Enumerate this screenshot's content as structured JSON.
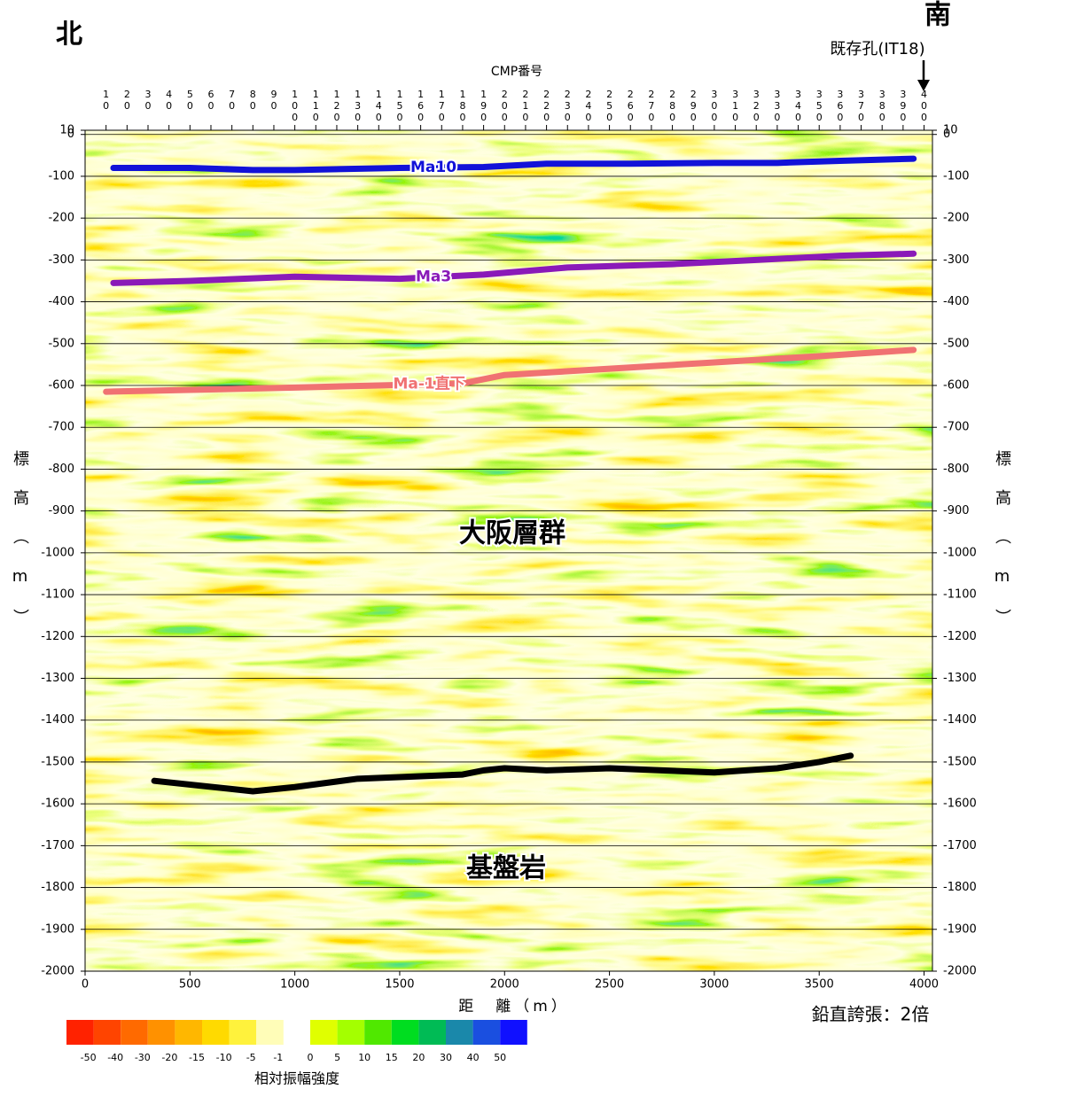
{
  "chart_data": {
    "type": "line",
    "x_label": "距　離（m）",
    "y_label": "標高（m）",
    "x2_label": "CMP番号",
    "xlim": [
      0,
      4040
    ],
    "xticks": [
      0,
      500,
      1000,
      1500,
      2000,
      2500,
      3000,
      3500,
      4000
    ],
    "x2lim": [
      0,
      404
    ],
    "x2ticks": [
      10,
      20,
      30,
      40,
      50,
      60,
      70,
      80,
      90,
      100,
      110,
      120,
      130,
      140,
      150,
      160,
      170,
      180,
      190,
      200,
      210,
      220,
      230,
      240,
      250,
      260,
      270,
      280,
      290,
      300,
      310,
      320,
      330,
      340,
      350,
      360,
      370,
      380,
      390,
      400
    ],
    "ylim": [
      -2000,
      10
    ],
    "yticks": [
      10,
      0,
      -100,
      -200,
      -300,
      -400,
      -500,
      -600,
      -700,
      -800,
      -900,
      -1000,
      -1100,
      -1200,
      -1300,
      -1400,
      -1500,
      -1600,
      -1700,
      -1800,
      -1900,
      -2000
    ],
    "grid": true,
    "series": [
      {
        "name": "Ma10",
        "color": "#1212d8",
        "x": [
          135,
          500,
          800,
          1000,
          1500,
          1900,
          2200,
          2600,
          3000,
          3300,
          3600,
          3950
        ],
        "values": [
          -80,
          -80,
          -85,
          -85,
          -80,
          -78,
          -70,
          -70,
          -68,
          -68,
          -63,
          -58
        ]
      },
      {
        "name": "Ma3",
        "color": "#8a1ab8",
        "x": [
          135,
          500,
          1000,
          1500,
          1900,
          2300,
          2800,
          3200,
          3600,
          3950
        ],
        "values": [
          -355,
          -350,
          -340,
          -345,
          -335,
          -318,
          -310,
          -300,
          -290,
          -285
        ]
      },
      {
        "name": "Ma-1直下",
        "color": "#f07272",
        "x": [
          100,
          1000,
          1800,
          2000,
          2500,
          3000,
          3500,
          3950
        ],
        "values": [
          -615,
          -605,
          -595,
          -575,
          -560,
          -545,
          -530,
          -515
        ]
      },
      {
        "color": "#000000",
        "x": [
          330,
          800,
          1000,
          1300,
          1800,
          1900,
          2000,
          2200,
          2500,
          3000,
          3300,
          3500,
          3650
        ],
        "values": [
          -1545,
          -1570,
          -1560,
          -1540,
          -1530,
          -1520,
          -1515,
          -1520,
          -1515,
          -1525,
          -1515,
          -1500,
          -1485
        ]
      }
    ],
    "annotations": [
      "北",
      "南",
      "既存孔(IT18)",
      "大阪層群",
      "基盤岩",
      "鉛直誇張：2倍"
    ],
    "colorbar": {
      "title": "相対振幅強度",
      "labels": [
        -50,
        -40,
        -30,
        -20,
        -15,
        -10,
        -5,
        -1,
        0,
        5,
        10,
        15,
        20,
        30,
        40,
        50
      ],
      "colors": [
        "#ff2200",
        "#ff4400",
        "#ff6a00",
        "#ff9100",
        "#ffb700",
        "#ffda00",
        "#fff23c",
        "#fffdb8",
        "#e0ff00",
        "#a4ff00",
        "#50e800",
        "#00dd20",
        "#00bb55",
        "#1a88aa",
        "#1a4fe0",
        "#1010ff"
      ]
    }
  }
}
